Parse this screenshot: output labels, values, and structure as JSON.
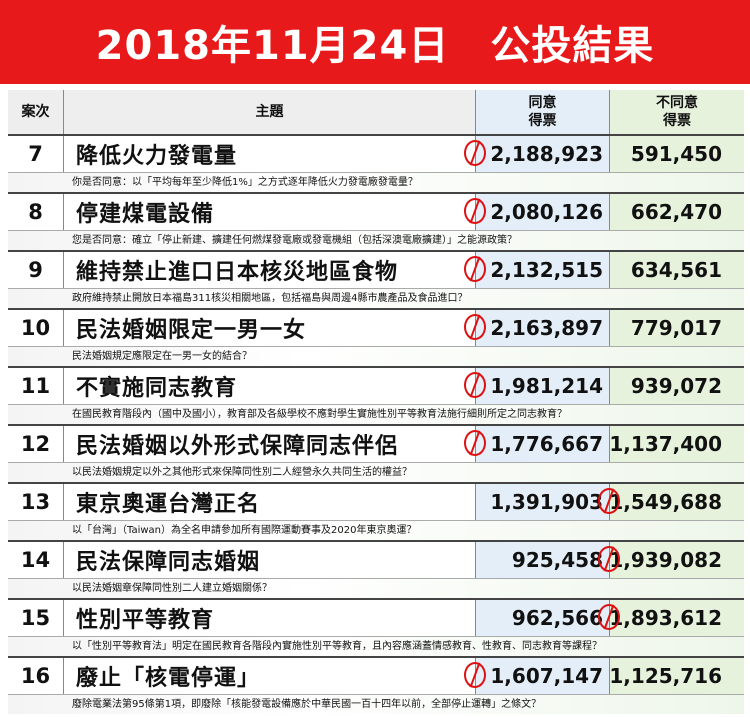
{
  "header": {
    "title": "2018年11月24日　公投結果"
  },
  "columns": {
    "num": "案次",
    "title": "主題",
    "agree": "同意\n得票",
    "disagree": "不同意\n得票"
  },
  "colors": {
    "banner": "#e8191b",
    "stamp": "#dd1111",
    "agree_bg": "#e3eef8",
    "disagree_bg": "#e6f2dc"
  },
  "rows": [
    {
      "num": "7",
      "title": "降低火力發電量",
      "agree": "2,188,923",
      "disagree": "591,450",
      "stamp": "agree",
      "question": "你是否同意：以「平均每年至少降低1%」之方式逐年降低火力發電廠發電量？"
    },
    {
      "num": "8",
      "title": "停建煤電設備",
      "agree": "2,080,126",
      "disagree": "662,470",
      "stamp": "agree",
      "question": "您是否同意：確立「停止新建、擴建任何燃煤發電廠或發電機組（包括深澳電廠擴建）」之能源政策？"
    },
    {
      "num": "9",
      "title": "維持禁止進口日本核災地區食物",
      "agree": "2,132,515",
      "disagree": "634,561",
      "stamp": "agree",
      "question": "政府維持禁止開放日本福島311核災相關地區，包括福島與周邊4縣市農產品及食品進口？"
    },
    {
      "num": "10",
      "title": "民法婚姻限定一男一女",
      "agree": "2,163,897",
      "disagree": "779,017",
      "stamp": "agree",
      "question": "民法婚姻規定應限定在一男一女的結合？"
    },
    {
      "num": "11",
      "title": "不實施同志教育",
      "agree": "1,981,214",
      "disagree": "939,072",
      "stamp": "agree",
      "question": "在國民教育階段內（國中及國小），教育部及各級學校不應對學生實施性別平等教育法施行細則所定之同志教育？"
    },
    {
      "num": "12",
      "title": "民法婚姻以外形式保障同志伴侶",
      "agree": "1,776,667",
      "disagree": "1,137,400",
      "stamp": "agree",
      "question": "以民法婚姻規定以外之其他形式來保障同性別二人經營永久共同生活的權益？"
    },
    {
      "num": "13",
      "title": "東京奧運台灣正名",
      "agree": "1,391,903",
      "disagree": "1,549,688",
      "stamp": "disagree",
      "question": "以「台灣」（Taiwan）為全名申請參加所有國際運動賽事及2020年東京奧運？"
    },
    {
      "num": "14",
      "title": "民法保障同志婚姻",
      "agree": "925,458",
      "disagree": "1,939,082",
      "stamp": "disagree",
      "question": "以民法婚姻章保障同性別二人建立婚姻關係？"
    },
    {
      "num": "15",
      "title": "性別平等教育",
      "agree": "962,566",
      "disagree": "1,893,612",
      "stamp": "disagree",
      "question": "以「性別平等教育法」明定在國民教育各階段內實施性別平等教育，且內容應涵蓋情感教育、性教育、同志教育等課程？"
    },
    {
      "num": "16",
      "title": "廢止「核電停運」",
      "agree": "1,607,147",
      "disagree": "1,125,716",
      "stamp": "agree",
      "question": "廢除電業法第95條第1項，即廢除「核能發電設備應於中華民國一百十四年以前，全部停止運轉」之條文？"
    }
  ]
}
